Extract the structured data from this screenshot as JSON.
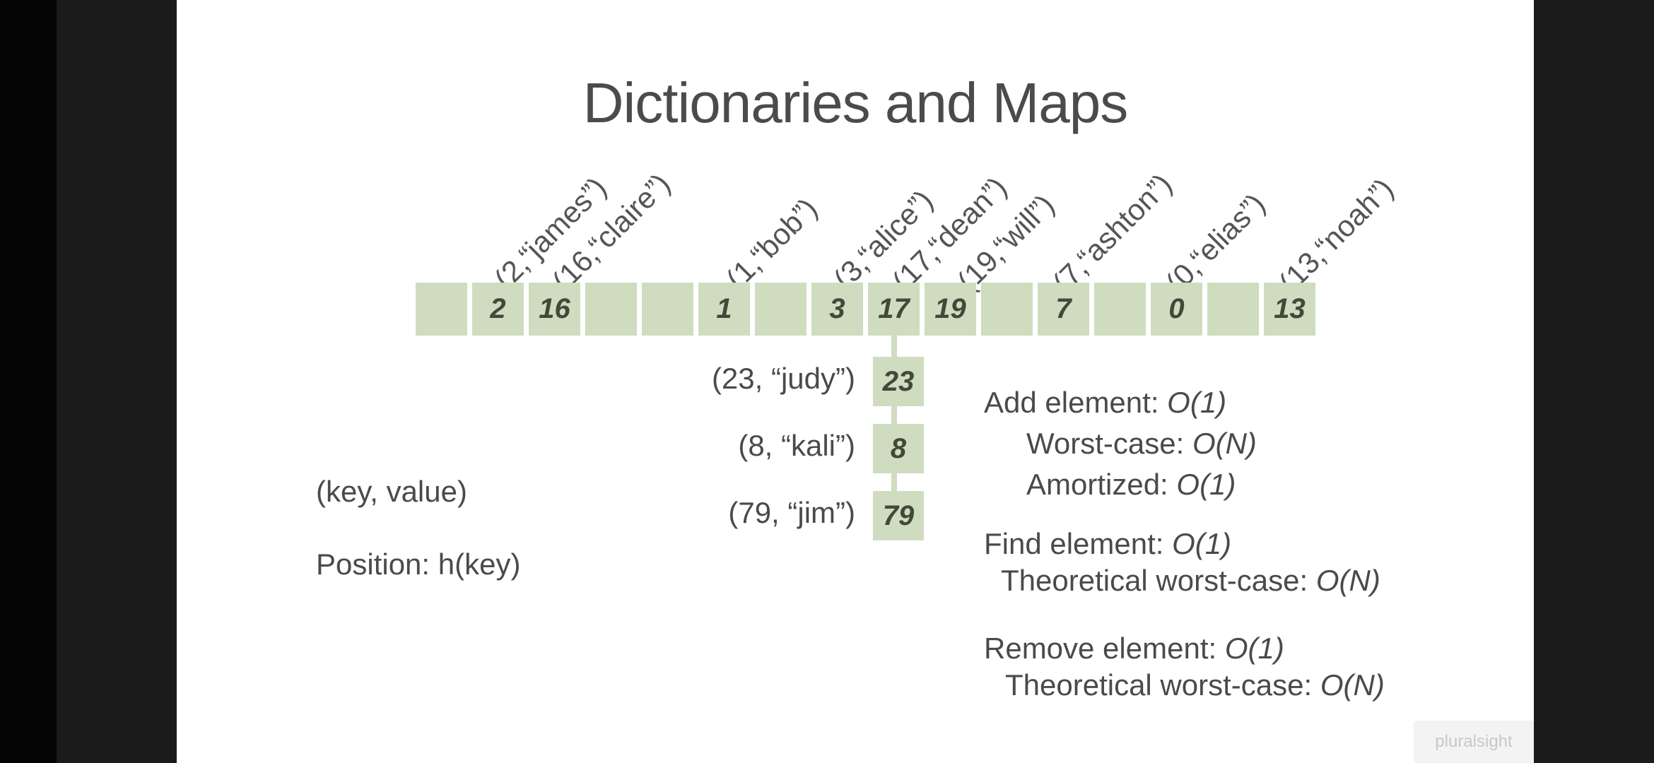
{
  "slide": {
    "title": "Dictionaries and Maps",
    "pairs": [
      {
        "label": "(2,“james”)"
      },
      {
        "label": "(16,“claire”)"
      },
      {
        "label": "(1,“bob”)"
      },
      {
        "label": "(3,“alice”)"
      },
      {
        "label": "(17,“dean”)"
      },
      {
        "label": "(19,“will”)"
      },
      {
        "label": "(7,“ashton”)"
      },
      {
        "label": "(0,“elias”)"
      },
      {
        "label": "(13,“noah”)"
      }
    ],
    "cells": [
      "",
      "2",
      "16",
      "",
      "",
      "1",
      "",
      "3",
      "17",
      "19",
      "",
      "7",
      "",
      "0",
      "",
      "13"
    ],
    "chain": [
      {
        "label": "(23, “judy”)",
        "key": "23"
      },
      {
        "label": "(8, “kali”)",
        "key": "8"
      },
      {
        "label": "(79, “jim”)",
        "key": "79"
      }
    ],
    "notes": {
      "kv": "(key, value)",
      "position": "Position: h(key)"
    },
    "ops": {
      "add": "Add element: ",
      "add_o": "O(1)",
      "worst": "Worst-case: ",
      "worst_o": "O(N)",
      "amort": "Amortized: ",
      "amort_o": "O(1)",
      "find": "Find element: ",
      "find_o": "O(1)",
      "find_worst": "Theoretical worst-case: ",
      "find_worst_o": "O(N)",
      "remove": "Remove element: ",
      "remove_o": "O(1)",
      "remove_worst": "Theoretical worst-case: ",
      "remove_worst_o": "O(N)"
    },
    "watermark": "pluralsight"
  }
}
